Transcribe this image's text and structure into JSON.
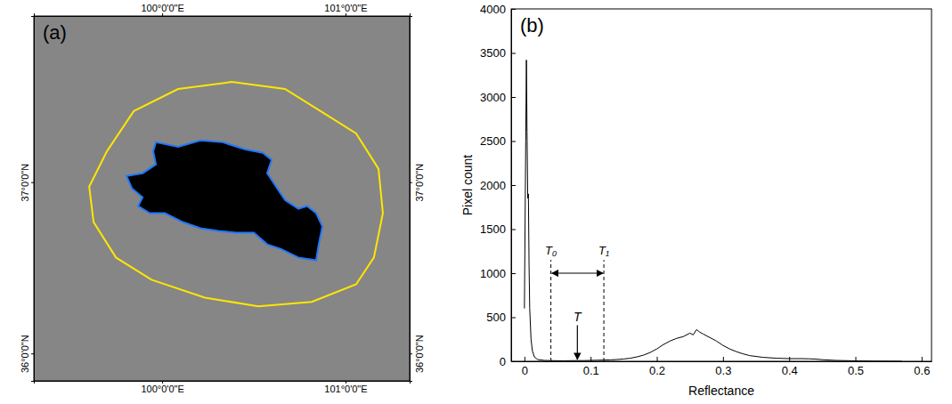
{
  "chart_data": [
    {
      "type": "map",
      "title": "(a)",
      "xlim": [
        99.3,
        101.35
      ],
      "ylim": [
        35.84,
        37.97
      ],
      "xticks": [
        {
          "value": 100,
          "label": "100°0'0\"E"
        },
        {
          "value": 101,
          "label": "101°0'0\"E"
        }
      ],
      "yticks": [
        {
          "value": 36,
          "label": "36°0'0\"N"
        },
        {
          "value": 37,
          "label": "37°0'0\"N"
        }
      ],
      "grid": false,
      "series": [
        {
          "type": "area",
          "color": "#1f78ff",
          "x": [
            99.966,
            100.087,
            100.209,
            100.33,
            100.451,
            100.549,
            100.597,
            100.573,
            100.621,
            100.67,
            100.743,
            100.791,
            100.84,
            100.874,
            100.854,
            100.84,
            100.743,
            100.646,
            100.573,
            100.5,
            100.403,
            100.306,
            100.209,
            100.112,
            100.015,
            99.932,
            99.869,
            99.893,
            99.835,
            99.806,
            99.893,
            99.966,
            99.951
          ],
          "values": [
            37.233,
            37.207,
            37.244,
            37.233,
            37.192,
            37.171,
            37.13,
            37.052,
            36.974,
            36.896,
            36.845,
            36.86,
            36.819,
            36.741,
            36.637,
            36.544,
            36.56,
            36.611,
            36.637,
            36.705,
            36.705,
            36.715,
            36.731,
            36.767,
            36.819,
            36.819,
            36.86,
            36.912,
            36.964,
            37.036,
            37.052,
            37.104,
            37.181
          ]
        },
        {
          "type": "line",
          "color": "#ffe600",
          "x": [
            99.699,
            99.845,
            100.087,
            100.379,
            100.67,
            100.864,
            101.058,
            101.18,
            101.204,
            101.155,
            101.058,
            100.816,
            100.524,
            100.233,
            99.942,
            99.748,
            99.626,
            99.602
          ],
          "values": [
            37.181,
            37.415,
            37.544,
            37.585,
            37.544,
            37.415,
            37.285,
            37.078,
            36.819,
            36.56,
            36.404,
            36.301,
            36.275,
            36.326,
            36.43,
            36.56,
            36.767,
            36.974
          ]
        }
      ]
    },
    {
      "type": "line",
      "title": "(b)",
      "x_label": "Reflectance",
      "y_label": "Pixel count",
      "xlim": [
        -0.02,
        0.615
      ],
      "ylim": [
        0,
        4000
      ],
      "xticks": [
        0,
        0.1,
        0.2,
        0.3,
        0.4,
        0.5,
        0.6
      ],
      "yticks": [
        0,
        500,
        1000,
        1500,
        2000,
        2500,
        3000,
        3500,
        4000
      ],
      "grid": false,
      "series": [
        {
          "color": "#000000",
          "x": [
            0,
            0.002,
            0.003,
            0.004,
            0.005,
            0.006,
            0.007,
            0.008,
            0.01,
            0.012,
            0.015,
            0.02,
            0.03,
            0.04,
            0.05,
            0.06,
            0.07,
            0.08,
            0.09,
            0.1,
            0.11,
            0.12,
            0.13,
            0.14,
            0.15,
            0.16,
            0.17,
            0.18,
            0.19,
            0.2,
            0.21,
            0.22,
            0.23,
            0.24,
            0.25,
            0.255,
            0.26,
            0.265,
            0.27,
            0.28,
            0.29,
            0.3,
            0.31,
            0.32,
            0.33,
            0.34,
            0.35,
            0.36,
            0.38,
            0.4,
            0.42,
            0.43,
            0.44,
            0.45,
            0.47,
            0.5,
            0.53,
            0.57
          ],
          "values": [
            600,
            2500,
            3420,
            2600,
            1850,
            1900,
            1100,
            600,
            250,
            120,
            50,
            20,
            10,
            8,
            6,
            6,
            7,
            8,
            8,
            10,
            12,
            14,
            16,
            20,
            26,
            35,
            50,
            70,
            100,
            140,
            190,
            230,
            260,
            280,
            320,
            300,
            360,
            330,
            310,
            270,
            230,
            180,
            140,
            110,
            85,
            65,
            55,
            45,
            35,
            30,
            30,
            28,
            25,
            18,
            10,
            5,
            2,
            0
          ]
        }
      ],
      "annotations": [
        {
          "text": "T₀",
          "x": 0.04,
          "y": 1150,
          "line_style": "dashed"
        },
        {
          "text": "T₁",
          "x": 0.12,
          "y": 1150,
          "line_style": "dashed"
        },
        {
          "text": "T",
          "x": 0.08,
          "y": 450,
          "marker": "arrow"
        }
      ],
      "range_arrow": {
        "from": 0.04,
        "to": 0.12,
        "y": 1000
      }
    }
  ]
}
